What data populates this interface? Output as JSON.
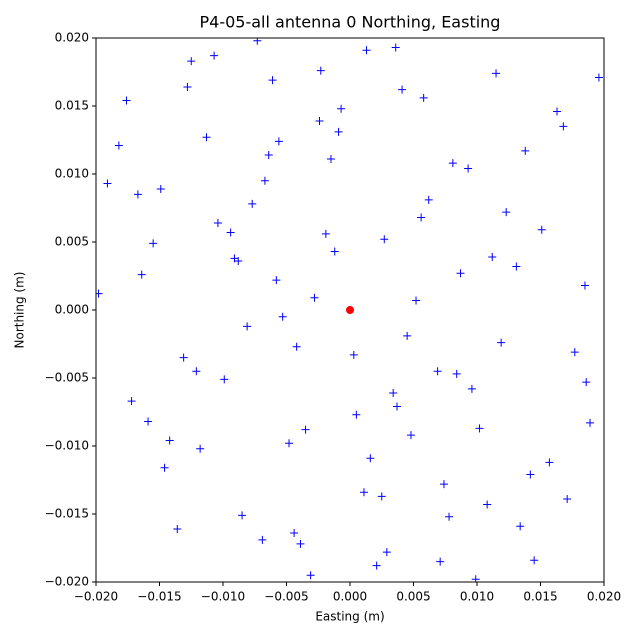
{
  "chart_data": {
    "type": "scatter",
    "title": "P4-05-all antenna 0 Northing, Easting",
    "xlabel": "Easting (m)",
    "ylabel": "Northing (m)",
    "xlim": [
      -0.02,
      0.02
    ],
    "ylim": [
      -0.02,
      0.02
    ],
    "xticks": [
      {
        "value": -0.02,
        "label": "−0.020"
      },
      {
        "value": -0.015,
        "label": "−0.015"
      },
      {
        "value": -0.01,
        "label": "−0.010"
      },
      {
        "value": -0.005,
        "label": "−0.005"
      },
      {
        "value": 0,
        "label": "0.000"
      },
      {
        "value": 0.005,
        "label": "0.005"
      },
      {
        "value": 0.01,
        "label": "0.010"
      },
      {
        "value": 0.015,
        "label": "0.015"
      },
      {
        "value": 0.02,
        "label": "0.020"
      }
    ],
    "yticks": [
      {
        "value": -0.02,
        "label": "−0.020"
      },
      {
        "value": -0.015,
        "label": "−0.015"
      },
      {
        "value": -0.01,
        "label": "−0.010"
      },
      {
        "value": -0.005,
        "label": "−0.005"
      },
      {
        "value": 0,
        "label": "0.000"
      },
      {
        "value": 0.005,
        "label": "0.005"
      },
      {
        "value": 0.01,
        "label": "0.010"
      },
      {
        "value": 0.015,
        "label": "0.015"
      },
      {
        "value": 0.02,
        "label": "0.020"
      }
    ],
    "grid": false,
    "series": [
      {
        "color": "#0000ff",
        "marker": "+",
        "x": [
          -0.0012,
          0.0034,
          -0.0056,
          0.0078,
          -0.0091,
          0.0102,
          -0.0023,
          0.0045,
          -0.0067,
          0.0011,
          0.0058,
          -0.0039,
          0.0087,
          -0.0104,
          0.0021,
          -0.0015,
          0.0069,
          -0.0081,
          0.0036,
          -0.0048,
          0.0123,
          -0.0131,
          0.0142,
          -0.0155,
          0.0168,
          -0.0172,
          0.0185,
          -0.0191,
          0.0134,
          -0.0118,
          0.0005,
          -0.0007,
          0.0027,
          -0.0031,
          0.0052,
          -0.0061,
          0.0074,
          -0.0088,
          0.0093,
          -0.0099,
          0.0108,
          -0.0113,
          0.0119,
          -0.0125,
          0.0151,
          -0.0146,
          0.0163,
          -0.0159,
          0.0177,
          -0.0182,
          -0.0028,
          0.0016,
          -0.0044,
          0.0062,
          -0.0073,
          0.0084,
          -0.0009,
          0.0041,
          -0.0053,
          0.0029,
          0.0196,
          -0.0198,
          0.0189,
          -0.0176,
          0.0171,
          -0.0164,
          0.0157,
          -0.0149,
          0.0138,
          -0.0136,
          0.0003,
          -0.0019,
          0.0048,
          -0.0064,
          0.0071,
          -0.0077,
          0.0096,
          -0.0085,
          0.0112,
          -0.0107,
          0.0013,
          -0.0035,
          0.0056,
          -0.0042,
          0.0025,
          -0.0058,
          0.0081,
          -0.0069,
          0.0037,
          -0.0024,
          0.0145,
          -0.0128,
          0.0131,
          -0.0142,
          0.0115,
          -0.0121,
          0.0099,
          -0.0094,
          0.0186,
          -0.0167
        ],
        "values": [
          0.0043,
          -0.0061,
          0.0124,
          -0.0152,
          0.0038,
          -0.0087,
          0.0176,
          -0.0019,
          0.0095,
          -0.0134,
          0.0156,
          -0.0172,
          0.0027,
          0.0064,
          -0.0188,
          0.0111,
          -0.0045,
          -0.0012,
          0.0193,
          -0.0098,
          0.0072,
          -0.0035,
          -0.0121,
          0.0049,
          0.0135,
          -0.0067,
          0.0018,
          0.0093,
          -0.0159,
          -0.0102,
          -0.0077,
          0.0148,
          0.0052,
          -0.0195,
          0.0007,
          0.0169,
          -0.0128,
          0.0036,
          0.0104,
          -0.0051,
          -0.0143,
          0.0127,
          -0.0024,
          0.0183,
          0.0059,
          -0.0116,
          0.0146,
          -0.0082,
          -0.0031,
          0.0121,
          0.0009,
          -0.0109,
          -0.0164,
          0.0081,
          0.0198,
          -0.0047,
          0.0131,
          0.0162,
          -0.0005,
          -0.0178,
          0.0171,
          0.0012,
          -0.0083,
          0.0154,
          -0.0139,
          0.0026,
          -0.0112,
          0.0089,
          0.0117,
          -0.0161,
          -0.0033,
          0.0056,
          -0.0092,
          0.0114,
          -0.0185,
          0.0078,
          -0.0058,
          -0.0151,
          0.0039,
          0.0187,
          0.0191,
          -0.0088,
          0.0068,
          -0.0027,
          -0.0137,
          0.0022,
          0.0108,
          -0.0169,
          -0.0071,
          0.0139,
          -0.0184,
          0.0164,
          0.0032,
          -0.0096,
          0.0174,
          -0.0045,
          -0.0198,
          0.0057,
          -0.0053,
          0.0085
        ]
      },
      {
        "color": "#ff0000",
        "marker": "o",
        "x": [
          0
        ],
        "values": [
          0
        ]
      }
    ]
  }
}
